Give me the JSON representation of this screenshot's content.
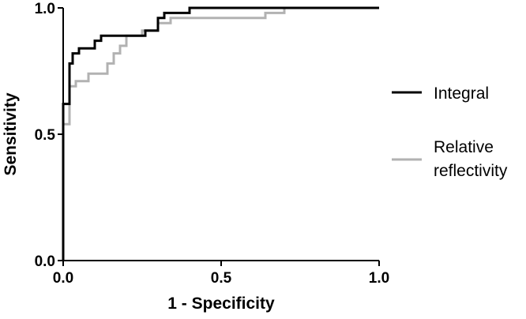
{
  "chart_data": {
    "type": "line",
    "title": "",
    "xlabel": "1 - Specificity",
    "ylabel": "Sensitivity",
    "xlim": [
      0,
      1
    ],
    "ylim": [
      0,
      1
    ],
    "x_ticks": [
      "0.0",
      "0.5",
      "1.0"
    ],
    "y_ticks": [
      "0.0",
      "0.5",
      "1.0"
    ],
    "x_tick_values": [
      0,
      0.5,
      1
    ],
    "y_tick_values": [
      0,
      0.5,
      1
    ],
    "grid": false,
    "legend_position": "right",
    "series": [
      {
        "name": "Integral",
        "color": "#000000",
        "step": true,
        "points": [
          [
            0,
            0
          ],
          [
            0,
            0.62
          ],
          [
            0.02,
            0.62
          ],
          [
            0.02,
            0.78
          ],
          [
            0.03,
            0.78
          ],
          [
            0.03,
            0.82
          ],
          [
            0.05,
            0.82
          ],
          [
            0.05,
            0.84
          ],
          [
            0.1,
            0.84
          ],
          [
            0.1,
            0.87
          ],
          [
            0.12,
            0.87
          ],
          [
            0.12,
            0.89
          ],
          [
            0.26,
            0.89
          ],
          [
            0.26,
            0.91
          ],
          [
            0.3,
            0.91
          ],
          [
            0.3,
            0.96
          ],
          [
            0.32,
            0.96
          ],
          [
            0.32,
            0.98
          ],
          [
            0.4,
            0.98
          ],
          [
            0.4,
            1.0
          ],
          [
            1.0,
            1.0
          ]
        ]
      },
      {
        "name": "Relative reflectivity",
        "color": "#b2b2b2",
        "step": true,
        "points": [
          [
            0,
            0
          ],
          [
            0,
            0.54
          ],
          [
            0.02,
            0.54
          ],
          [
            0.02,
            0.69
          ],
          [
            0.04,
            0.69
          ],
          [
            0.04,
            0.71
          ],
          [
            0.08,
            0.71
          ],
          [
            0.08,
            0.74
          ],
          [
            0.14,
            0.74
          ],
          [
            0.14,
            0.78
          ],
          [
            0.16,
            0.78
          ],
          [
            0.16,
            0.82
          ],
          [
            0.18,
            0.82
          ],
          [
            0.18,
            0.85
          ],
          [
            0.2,
            0.85
          ],
          [
            0.2,
            0.89
          ],
          [
            0.25,
            0.89
          ],
          [
            0.25,
            0.91
          ],
          [
            0.3,
            0.91
          ],
          [
            0.3,
            0.94
          ],
          [
            0.34,
            0.94
          ],
          [
            0.34,
            0.96
          ],
          [
            0.64,
            0.96
          ],
          [
            0.64,
            0.98
          ],
          [
            0.7,
            0.98
          ],
          [
            0.7,
            1.0
          ],
          [
            1.0,
            1.0
          ]
        ]
      }
    ]
  }
}
